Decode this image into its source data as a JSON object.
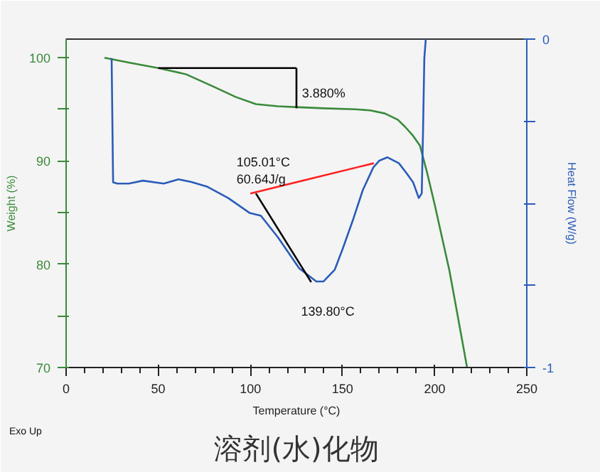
{
  "chart_data": {
    "type": "line",
    "title": "溶剂(水)化物",
    "xlabel": "Temperature (°C)",
    "ylabel": "Weight (%)",
    "y2label": "Heat Flow (W/g)",
    "xlim": [
      0,
      250
    ],
    "xticks": [
      0,
      50,
      100,
      150,
      200,
      250
    ],
    "ylim": [
      70,
      101.8
    ],
    "yticks": [
      70,
      {
        "value": 75,
        "label": null
      },
      80,
      {
        "value": 85,
        "label": null
      },
      90,
      {
        "value": 95,
        "label": null
      },
      100
    ],
    "y2lim": [
      -1,
      0
    ],
    "y2ticks": [
      -1,
      {
        "value": -0.75,
        "label": null
      },
      {
        "value": -0.5,
        "label": null
      },
      {
        "value": -0.25,
        "label": null
      },
      0
    ],
    "grid": false,
    "marker": "none",
    "line_style": "solid",
    "series": [
      {
        "color": "#3a8a3a",
        "x": [
          20.8,
          35,
          50,
          65,
          80,
          92,
          103,
          115,
          126.5,
          140,
          157,
          165,
          173,
          180,
          184,
          188,
          192,
          196,
          200,
          204,
          208,
          212,
          217.6
        ],
        "values": [
          100,
          99.5,
          99.0,
          98.4,
          97.2,
          96.2,
          95.5,
          95.3,
          95.2,
          95.1,
          95.0,
          94.9,
          94.6,
          94.0,
          93.3,
          92.5,
          91.5,
          88.8,
          85.8,
          82.6,
          79.4,
          75.5,
          70
        ]
      },
      {
        "color": "#2a5cb8",
        "axis": "y2",
        "x": [
          24.7,
          25.5,
          27.8,
          34,
          41.7,
          53,
          61,
          68,
          76.4,
          88,
          99.5,
          105.7,
          115,
          126.5,
          135.8,
          139.7,
          145.8,
          150,
          155.9,
          161,
          166.7,
          170,
          174.4,
          180.6,
          185,
          188.3,
          191.4,
          193,
          193.7,
          194.4,
          195.2
        ],
        "values": [
          -0.058,
          -0.436,
          -0.44,
          -0.44,
          -0.431,
          -0.44,
          -0.427,
          -0.435,
          -0.449,
          -0.484,
          -0.529,
          -0.538,
          -0.604,
          -0.698,
          -0.738,
          -0.738,
          -0.702,
          -0.64,
          -0.547,
          -0.46,
          -0.391,
          -0.37,
          -0.36,
          -0.378,
          -0.41,
          -0.436,
          -0.484,
          -0.47,
          -0.28,
          -0.058,
          0
        ]
      },
      {
        "color": "#000000",
        "axis": "y2",
        "x": [
          103,
          133
        ],
        "values": [
          -0.47,
          -0.74
        ]
      },
      {
        "color": "#ff2020",
        "axis": "y2",
        "x": [
          100,
          167
        ],
        "values": [
          -0.47,
          -0.378
        ]
      },
      {
        "color": "#000000",
        "x": [
          50,
          125
        ],
        "values": [
          99.0,
          99.0
        ]
      },
      {
        "color": "#000000",
        "x": [
          125,
          125
        ],
        "values": [
          99.0,
          95.1
        ]
      }
    ],
    "annotations": [
      {
        "text": "3.880%",
        "x": 128,
        "y": 96.6
      },
      "105.01°C\n60.64J/g",
      "139.80°C",
      "Exo Up"
    ]
  }
}
